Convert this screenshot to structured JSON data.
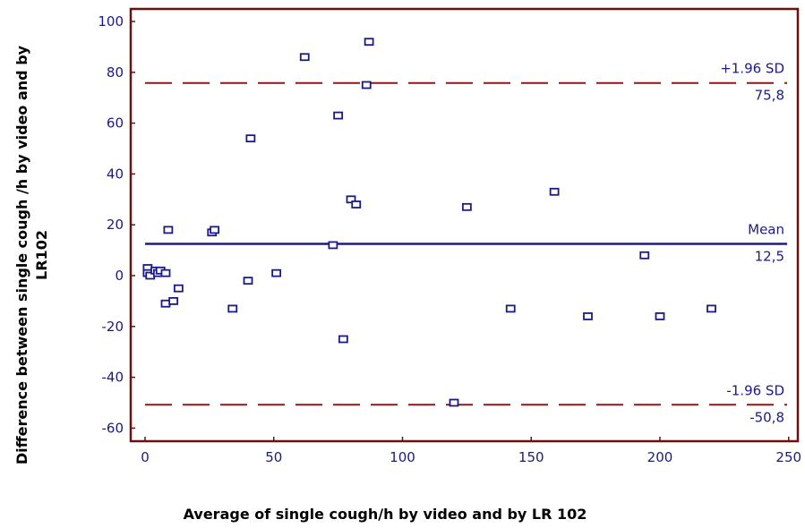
{
  "chart_data": {
    "type": "scatter",
    "xlabel": "Average of single cough/h by video and by LR 102",
    "ylabel_lines": [
      "Difference between single cough /h by video and by",
      "LR102"
    ],
    "xlim": [
      0,
      250
    ],
    "ylim": [
      -65,
      105
    ],
    "x_ticks": [
      0,
      50,
      100,
      150,
      200,
      250
    ],
    "y_ticks": [
      -60,
      -40,
      -20,
      0,
      20,
      40,
      60,
      80,
      100
    ],
    "grid": false,
    "reference_lines": [
      {
        "name": "+1.96 SD",
        "value": 75.8,
        "value_label": "75,8",
        "style": "dashed",
        "color": "#8b1a1a"
      },
      {
        "name": "Mean",
        "value": 12.5,
        "value_label": "12,5",
        "style": "solid",
        "color": "#1a1a8a"
      },
      {
        "name": "-1.96 SD",
        "value": -50.8,
        "value_label": "-50,8",
        "style": "dashed",
        "color": "#8b1a1a"
      }
    ],
    "points": [
      {
        "x": 1,
        "y": 3
      },
      {
        "x": 1,
        "y": 1
      },
      {
        "x": 2,
        "y": 0
      },
      {
        "x": 4,
        "y": 2
      },
      {
        "x": 5,
        "y": 1
      },
      {
        "x": 6,
        "y": 2
      },
      {
        "x": 8,
        "y": 1
      },
      {
        "x": 9,
        "y": 18
      },
      {
        "x": 8,
        "y": -11
      },
      {
        "x": 11,
        "y": -10
      },
      {
        "x": 13,
        "y": -5
      },
      {
        "x": 26,
        "y": 17
      },
      {
        "x": 27,
        "y": 18
      },
      {
        "x": 34,
        "y": -13
      },
      {
        "x": 40,
        "y": -2
      },
      {
        "x": 41,
        "y": 54
      },
      {
        "x": 51,
        "y": 1
      },
      {
        "x": 62,
        "y": 86
      },
      {
        "x": 73,
        "y": 12
      },
      {
        "x": 75,
        "y": 63
      },
      {
        "x": 77,
        "y": -25
      },
      {
        "x": 80,
        "y": 30
      },
      {
        "x": 82,
        "y": 28
      },
      {
        "x": 86,
        "y": 75
      },
      {
        "x": 87,
        "y": 92
      },
      {
        "x": 120,
        "y": -50
      },
      {
        "x": 125,
        "y": 27
      },
      {
        "x": 142,
        "y": -13
      },
      {
        "x": 159,
        "y": 33
      },
      {
        "x": 172,
        "y": -16
      },
      {
        "x": 194,
        "y": 8
      },
      {
        "x": 200,
        "y": -16
      },
      {
        "x": 220,
        "y": -13
      }
    ],
    "colors": {
      "frame": "#6b0f0f",
      "axis_text": "#1a1a8a",
      "marker": "#1a1a8a",
      "sd_line": "#8b1a1a",
      "mean_line": "#1a1a8a"
    }
  }
}
